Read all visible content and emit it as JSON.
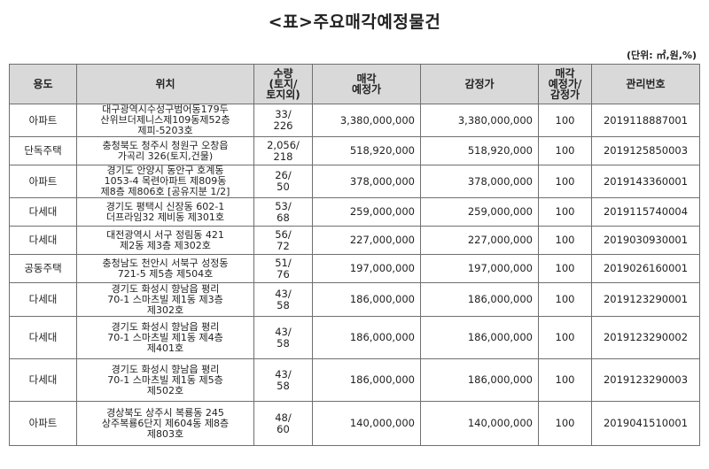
{
  "title": "<표>주요매각예정물건",
  "unit": "(단위: ㎡,원,%)",
  "table": {
    "headers": [
      "용도",
      "위치",
      "수량\n(토지/\n토지외)",
      "매각\n예정가",
      "감정가",
      "매각\n예정가/\n감정가",
      "관리번호"
    ],
    "rows": [
      [
        "아파트",
        "대구광역시수성구범어동179두\n산위브더제니스제109동제52층\n제피-5203호",
        "33/\n226",
        "3,380,000,000",
        "3,380,000,000",
        "100",
        "2019118887001"
      ],
      [
        "단독주택",
        "충청북도 청주시 청원구 오창읍\n가곡리 326(토지,건물)",
        "2,056/\n218",
        "518,920,000",
        "518,920,000",
        "100",
        "2019125850003"
      ],
      [
        "아파트",
        "경기도 안양시 동안구 호계동\n1053-4 목련아파트 제809동\n제8층 제806호 [공유지분 1/2]",
        "26/\n50",
        "378,000,000",
        "378,000,000",
        "100",
        "2019143360001"
      ],
      [
        "다세대",
        "경기도 평택시 신장동 602-1\n더프라임32 제비동 제301호",
        "53/\n68",
        "259,000,000",
        "259,000,000",
        "100",
        "2019115740004"
      ],
      [
        "다세대",
        "대전광역시 서구 정림동 421\n제2동 제3층 제302호",
        "56/\n72",
        "227,000,000",
        "227,000,000",
        "100",
        "2019030930001"
      ],
      [
        "공동주택",
        "충청남도 천안시 서북구 성정동\n721-5 제5층 제504호",
        "51/\n76",
        "197,000,000",
        "197,000,000",
        "100",
        "2019026160001"
      ],
      [
        "다세대",
        "경기도 화성시 향남읍 평리\n70-1 스마츠빌 제1동 제3층\n제302호",
        "43/\n58",
        "186,000,000",
        "186,000,000",
        "100",
        "2019123290001"
      ],
      [
        "다세대",
        "경기도 화성시 향남읍 평리\n70-1 스마츠빌 제1동 제4층\n제401호",
        "43/\n58",
        "186,000,000",
        "186,000,000",
        "100",
        "2019123290002"
      ],
      [
        "다세대",
        "경기도 화성시 향남읍 평리\n70-1 스마츠빌 제1동 제5층\n제502호",
        "43/\n58",
        "186,000,000",
        "186,000,000",
        "100",
        "2019123290003"
      ],
      [
        "아파트",
        "경상북도 상주시 복룡동 245\n상주복룡6단지 제604동 제8층\n제803호",
        "48/\n60",
        "140,000,000",
        "140,000,000",
        "100",
        "2019041510001"
      ]
    ]
  }
}
